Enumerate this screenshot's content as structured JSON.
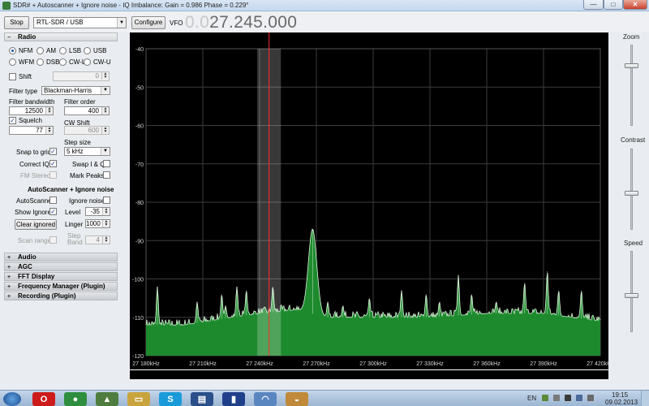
{
  "window": {
    "title": "SDR# + Autoscanner + Ignore noise - IQ Imbalance: Gain = 0.986 Phase = 0.229°",
    "min_glyph": "—",
    "max_glyph": "□",
    "close_glyph": "✕"
  },
  "toolbar": {
    "stop_label": "Stop",
    "source_value": "RTL-SDR / USB",
    "configure_label": "Configure",
    "vfo_label": "VFO",
    "vfo_lead": "0.0",
    "vfo_value": "27.245.000"
  },
  "radio": {
    "header": "Radio",
    "modes": [
      {
        "label": "NFM",
        "selected": true
      },
      {
        "label": "AM",
        "selected": false
      },
      {
        "label": "LSB",
        "selected": false
      },
      {
        "label": "USB",
        "selected": false
      },
      {
        "label": "WFM",
        "selected": false
      },
      {
        "label": "DSB",
        "selected": false
      },
      {
        "label": "CW-L",
        "selected": false
      },
      {
        "label": "CW-U",
        "selected": false
      }
    ],
    "shift_label": "Shift",
    "shift_value": "0",
    "filter_type_label": "Filter type",
    "filter_type_value": "Blackman-Harris",
    "filter_bandwidth_label": "Filter bandwidth",
    "filter_bandwidth_value": "12500",
    "filter_order_label": "Filter order",
    "filter_order_value": "400",
    "squelch_label": "Squelch",
    "squelch_value": "77",
    "cw_shift_label": "CW Shift",
    "cw_shift_value": "600",
    "step_size_label": "Step size",
    "step_size_value": "5 kHz",
    "snap_to_grid_label": "Snap to grid",
    "correct_iq_label": "Correct IQ",
    "swap_iq_label": "Swap I & Q",
    "fm_stereo_label": "FM Stereo",
    "mark_peaks_label": "Mark Peaks",
    "autoscanner_header": "AutoScanner + Ignore noise",
    "autoscanner_label": "AutoScanner",
    "ignore_noise_label": "Ignore noise",
    "show_ignore_label": "Show Ignore",
    "level_label": "Level",
    "level_value": "-35",
    "clear_ignored_label": "Clear ignored",
    "linger_label": "Linger",
    "linger_value": "1000",
    "scan_range_label": "Scan range",
    "step_band_label_1": "Step",
    "step_band_label_2": "Band",
    "step_band_value": "4",
    "check_glyph": "✓"
  },
  "collapsed_sections": [
    "Audio",
    "AGC",
    "FFT Display",
    "Frequency Manager (Plugin)",
    "Recording (Plugin)"
  ],
  "expanded_glyph": "−",
  "collapsed_glyph": "+",
  "right_controls": {
    "zoom_label": "Zoom",
    "zoom_level": 0.26,
    "contrast_label": "Contrast",
    "contrast_level": 0.55,
    "speed_label": "Speed",
    "speed_level": 0.55
  },
  "chart_data": {
    "type": "area",
    "y_ticks": [
      -40,
      -50,
      -60,
      -70,
      -80,
      -90,
      -100,
      -110,
      -120
    ],
    "ylim": [
      -120,
      -40
    ],
    "xlim_hz": [
      27180000,
      27420000
    ],
    "x_ticks": [
      "27 180kHz",
      "27 210kHz",
      "27 240kHz",
      "27 270kHz",
      "27 300kHz",
      "27 330kHz",
      "27 360kHz",
      "27 390kHz",
      "27 420kHz"
    ],
    "x_tick_values_hz": [
      27180000,
      27210000,
      27240000,
      27270000,
      27300000,
      27330000,
      27360000,
      27390000,
      27420000
    ],
    "grid": true,
    "vfo_hz": 27245000,
    "filter_bandwidth_hz": 12500,
    "noise_floor": [
      [
        27180000,
        -112
      ],
      [
        27200000,
        -112
      ],
      [
        27225000,
        -110
      ],
      [
        27240000,
        -109
      ],
      [
        27260000,
        -108
      ],
      [
        27275000,
        -110
      ],
      [
        27300000,
        -110
      ],
      [
        27330000,
        -110
      ],
      [
        27360000,
        -109
      ],
      [
        27390000,
        -109
      ],
      [
        27420000,
        -111
      ]
    ],
    "peaks": [
      {
        "f_hz": 27186000,
        "db": -102
      },
      {
        "f_hz": 27207000,
        "db": -106
      },
      {
        "f_hz": 27220000,
        "db": -104
      },
      {
        "f_hz": 27222000,
        "db": -107
      },
      {
        "f_hz": 27228000,
        "db": -102
      },
      {
        "f_hz": 27233000,
        "db": -103
      },
      {
        "f_hz": 27247000,
        "db": -102
      },
      {
        "f_hz": 27268000,
        "db": -87
      },
      {
        "f_hz": 27276000,
        "db": -106
      },
      {
        "f_hz": 27284000,
        "db": -107
      },
      {
        "f_hz": 27298000,
        "db": -105
      },
      {
        "f_hz": 27315000,
        "db": -103
      },
      {
        "f_hz": 27328000,
        "db": -104
      },
      {
        "f_hz": 27335000,
        "db": -106
      },
      {
        "f_hz": 27345000,
        "db": -99
      },
      {
        "f_hz": 27352000,
        "db": -104
      },
      {
        "f_hz": 27365000,
        "db": -106
      },
      {
        "f_hz": 27380000,
        "db": -101
      },
      {
        "f_hz": 27392000,
        "db": -98
      },
      {
        "f_hz": 27398000,
        "db": -103
      },
      {
        "f_hz": 27410000,
        "db": -103
      }
    ]
  },
  "taskbar": {
    "language": "EN",
    "time": "19:15",
    "date": "09.02.2013",
    "apps": [
      {
        "name": "opera",
        "glyph": "O",
        "color": "#cc1b1b"
      },
      {
        "name": "chrome",
        "glyph": "●",
        "color": "#2f8f3f"
      },
      {
        "name": "sdr-app",
        "glyph": "▲",
        "color": "#4f7d3f"
      },
      {
        "name": "explorer",
        "glyph": "▭",
        "color": "#c9a33e"
      },
      {
        "name": "skype",
        "glyph": "S",
        "color": "#1a9ad9"
      },
      {
        "name": "save",
        "glyph": "▤",
        "color": "#2a4f8a"
      },
      {
        "name": "sdrsharp",
        "glyph": "▮",
        "color": "#203f8a"
      },
      {
        "name": "network",
        "glyph": "◠",
        "color": "#5a86c0"
      },
      {
        "name": "paint",
        "glyph": "◒",
        "color": "#c08a3a"
      }
    ]
  }
}
